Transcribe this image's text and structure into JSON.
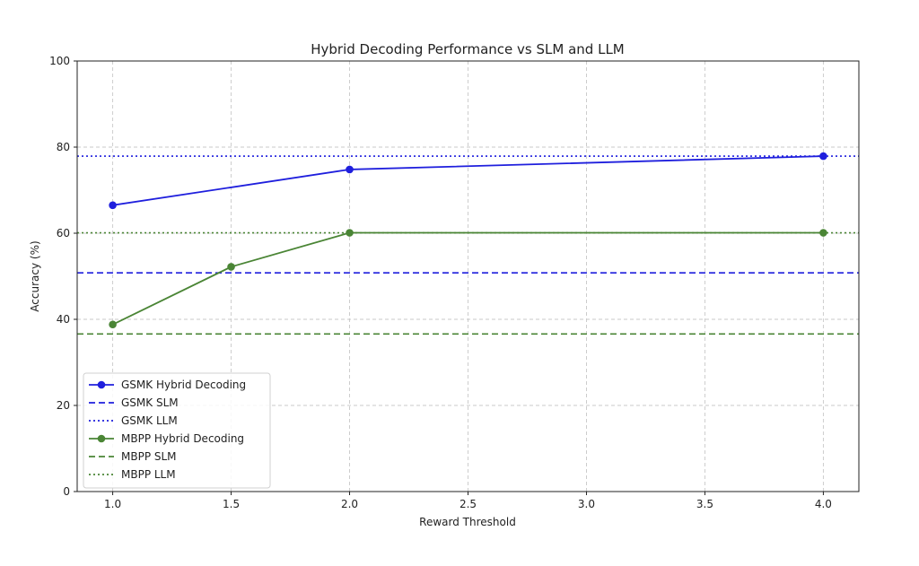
{
  "chart_data": {
    "type": "line",
    "title": "Hybrid Decoding Performance vs SLM and LLM",
    "xlabel": "Reward Threshold",
    "ylabel": "Accuracy (%)",
    "xlim": [
      0.85,
      4.15
    ],
    "ylim": [
      0,
      100
    ],
    "xticks": [
      1.0,
      1.5,
      2.0,
      2.5,
      3.0,
      3.5,
      4.0
    ],
    "xtick_labels": [
      "1.0",
      "1.5",
      "2.0",
      "2.5",
      "3.0",
      "3.5",
      "4.0"
    ],
    "yticks": [
      0,
      20,
      40,
      60,
      80,
      100
    ],
    "ytick_labels": [
      "0",
      "20",
      "40",
      "60",
      "80",
      "100"
    ],
    "grid": true,
    "legend_position": "lower-left",
    "series": [
      {
        "name": "GSMK Hybrid Decoding",
        "kind": "line-marker",
        "color": "#1f1fdd",
        "style": "solid",
        "x": [
          1.0,
          2.0,
          4.0
        ],
        "y": [
          66.5,
          74.8,
          77.9
        ]
      },
      {
        "name": "GSMK SLM",
        "kind": "hline",
        "color": "#1f1fdd",
        "style": "dashed",
        "y": 50.8
      },
      {
        "name": "GSMK LLM",
        "kind": "hline",
        "color": "#1f1fdd",
        "style": "dotted",
        "y": 77.9
      },
      {
        "name": "MBPP Hybrid Decoding",
        "kind": "line-marker",
        "color": "#4a8535",
        "style": "solid",
        "x": [
          1.0,
          1.5,
          2.0,
          4.0
        ],
        "y": [
          38.8,
          52.2,
          60.1,
          60.1
        ]
      },
      {
        "name": "MBPP SLM",
        "kind": "hline",
        "color": "#4a8535",
        "style": "dashed",
        "y": 36.6
      },
      {
        "name": "MBPP LLM",
        "kind": "hline",
        "color": "#4a8535",
        "style": "dotted",
        "y": 60.1
      }
    ]
  }
}
